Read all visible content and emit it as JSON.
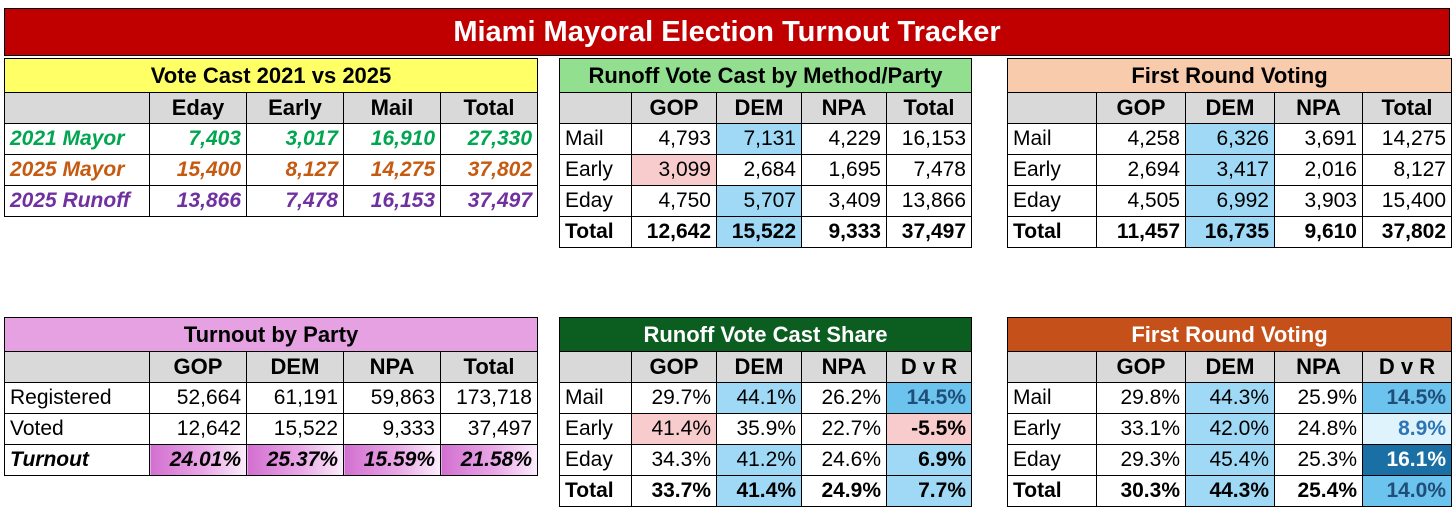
{
  "title": "Miami Mayoral Election Turnout Tracker",
  "vote_cast": {
    "title": "Vote Cast 2021 vs 2025",
    "headers": [
      "",
      "Eday",
      "Early",
      "Mail",
      "Total"
    ],
    "rows": [
      {
        "label": "2021 Mayor",
        "values": [
          "7,403",
          "3,017",
          "16,910",
          "27,330"
        ]
      },
      {
        "label": "2025 Mayor",
        "values": [
          "15,400",
          "8,127",
          "14,275",
          "37,802"
        ]
      },
      {
        "label": "2025 Runoff",
        "values": [
          "13,866",
          "7,478",
          "16,153",
          "37,497"
        ]
      }
    ]
  },
  "runoff_method": {
    "title": "Runoff Vote Cast by Method/Party",
    "headers": [
      "",
      "GOP",
      "DEM",
      "NPA",
      "Total"
    ],
    "rows": [
      {
        "label": "Mail",
        "values": [
          "4,793",
          "7,131",
          "4,229",
          "16,153"
        ]
      },
      {
        "label": "Early",
        "values": [
          "3,099",
          "2,684",
          "1,695",
          "7,478"
        ]
      },
      {
        "label": "Eday",
        "values": [
          "4,750",
          "5,707",
          "3,409",
          "13,866"
        ]
      },
      {
        "label": "Total",
        "values": [
          "12,642",
          "15,522",
          "9,333",
          "37,497"
        ]
      }
    ]
  },
  "first_round": {
    "title": "First Round Voting",
    "headers": [
      "",
      "GOP",
      "DEM",
      "NPA",
      "Total"
    ],
    "rows": [
      {
        "label": "Mail",
        "values": [
          "4,258",
          "6,326",
          "3,691",
          "14,275"
        ]
      },
      {
        "label": "Early",
        "values": [
          "2,694",
          "3,417",
          "2,016",
          "8,127"
        ]
      },
      {
        "label": "Eday",
        "values": [
          "4,505",
          "6,992",
          "3,903",
          "15,400"
        ]
      },
      {
        "label": "Total",
        "values": [
          "11,457",
          "16,735",
          "9,610",
          "37,802"
        ]
      }
    ]
  },
  "turnout_party": {
    "title": "Turnout by Party",
    "headers": [
      "",
      "GOP",
      "DEM",
      "NPA",
      "Total"
    ],
    "rows": [
      {
        "label": "Registered",
        "values": [
          "52,664",
          "61,191",
          "59,863",
          "173,718"
        ]
      },
      {
        "label": "Voted",
        "values": [
          "12,642",
          "15,522",
          "9,333",
          "37,497"
        ]
      },
      {
        "label": "Turnout",
        "values": [
          "24.01%",
          "25.37%",
          "15.59%",
          "21.58%"
        ]
      }
    ]
  },
  "runoff_share": {
    "title": "Runoff Vote Cast Share",
    "headers": [
      "",
      "GOP",
      "DEM",
      "NPA",
      "D v R"
    ],
    "rows": [
      {
        "label": "Mail",
        "values": [
          "29.7%",
          "44.1%",
          "26.2%",
          "14.5%"
        ]
      },
      {
        "label": "Early",
        "values": [
          "41.4%",
          "35.9%",
          "22.7%",
          "-5.5%"
        ]
      },
      {
        "label": "Eday",
        "values": [
          "34.3%",
          "41.2%",
          "24.6%",
          "6.9%"
        ]
      },
      {
        "label": "Total",
        "values": [
          "33.7%",
          "41.4%",
          "24.9%",
          "7.7%"
        ]
      }
    ]
  },
  "first_round_share": {
    "title": "First Round Voting",
    "headers": [
      "",
      "GOP",
      "DEM",
      "NPA",
      "D v R"
    ],
    "rows": [
      {
        "label": "Mail",
        "values": [
          "29.8%",
          "44.3%",
          "25.9%",
          "14.5%"
        ]
      },
      {
        "label": "Early",
        "values": [
          "33.1%",
          "42.0%",
          "24.8%",
          "8.9%"
        ]
      },
      {
        "label": "Eday",
        "values": [
          "29.3%",
          "45.4%",
          "25.3%",
          "16.1%"
        ]
      },
      {
        "label": "Total",
        "values": [
          "30.3%",
          "44.3%",
          "25.4%",
          "14.0%"
        ]
      }
    ]
  },
  "colors": {
    "banner": "#c00000",
    "vote_cast_title": "#ffff66",
    "runoff_method_title": "#92e08f",
    "first_round_title": "#f8cbad",
    "turnout_title": "#e6a1e3",
    "runoff_share_title": "#0b5e20",
    "first_round_share_title": "#c5501a"
  }
}
